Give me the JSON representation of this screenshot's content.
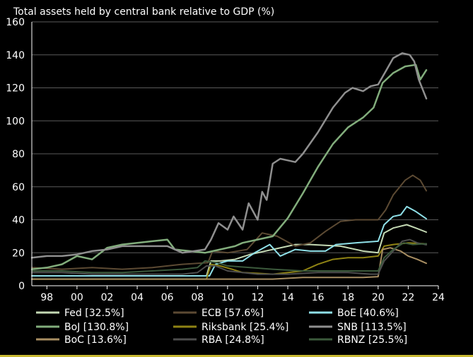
{
  "chart_data": {
    "type": "line",
    "title": "Total assets held by central bank relative to GDP (%)",
    "xlabel": "",
    "ylabel": "",
    "xlim": [
      1997,
      2024
    ],
    "ylim": [
      0,
      160
    ],
    "grid": true,
    "y_ticks": [
      0,
      20,
      40,
      60,
      80,
      100,
      120,
      140,
      160
    ],
    "x_ticks": [
      {
        "year": 1998,
        "label": "98"
      },
      {
        "year": 2000,
        "label": "00"
      },
      {
        "year": 2002,
        "label": "02"
      },
      {
        "year": 2004,
        "label": "04"
      },
      {
        "year": 2006,
        "label": "06"
      },
      {
        "year": 2008,
        "label": "08"
      },
      {
        "year": 2010,
        "label": "10"
      },
      {
        "year": 2012,
        "label": "12"
      },
      {
        "year": 2014,
        "label": "14"
      },
      {
        "year": 2016,
        "label": "16"
      },
      {
        "year": 2018,
        "label": "18"
      },
      {
        "year": 2020,
        "label": "20"
      },
      {
        "year": 2022,
        "label": "22"
      },
      {
        "year": 2024,
        "label": "24"
      }
    ],
    "legend_position": "bottom",
    "series": [
      {
        "name": "Fed [32.5%]",
        "color": "#c4d9b4",
        "width": 2,
        "points": [
          [
            1997,
            6
          ],
          [
            1999,
            6
          ],
          [
            2001,
            6
          ],
          [
            2003,
            6
          ],
          [
            2005,
            6
          ],
          [
            2007,
            6
          ],
          [
            2008.6,
            6
          ],
          [
            2008.9,
            15
          ],
          [
            2009.5,
            15
          ],
          [
            2010.5,
            16
          ],
          [
            2011.5,
            19
          ],
          [
            2013,
            22
          ],
          [
            2014.5,
            25
          ],
          [
            2015.5,
            25
          ],
          [
            2017.5,
            24
          ],
          [
            2019,
            21
          ],
          [
            2020,
            20
          ],
          [
            2020.4,
            32
          ],
          [
            2021,
            35
          ],
          [
            2021.9,
            37
          ],
          [
            2022.5,
            35
          ],
          [
            2023.2,
            32.5
          ]
        ]
      },
      {
        "name": "ECB [57.6%]",
        "color": "#5c4a33",
        "width": 2,
        "points": [
          [
            1997,
            11
          ],
          [
            1999,
            10
          ],
          [
            2001,
            11
          ],
          [
            2003,
            10
          ],
          [
            2005,
            11
          ],
          [
            2007,
            13
          ],
          [
            2008.7,
            14
          ],
          [
            2009,
            21
          ],
          [
            2010,
            20
          ],
          [
            2011.3,
            22
          ],
          [
            2012.3,
            32
          ],
          [
            2013.3,
            30
          ],
          [
            2014.5,
            24
          ],
          [
            2015.5,
            26
          ],
          [
            2016.5,
            33
          ],
          [
            2017.5,
            39
          ],
          [
            2018.5,
            40
          ],
          [
            2020,
            40
          ],
          [
            2020.5,
            46
          ],
          [
            2021,
            55
          ],
          [
            2021.8,
            64
          ],
          [
            2022.3,
            67
          ],
          [
            2022.8,
            64
          ],
          [
            2023.2,
            57.6
          ]
        ]
      },
      {
        "name": "BoE [40.6%]",
        "color": "#8fe0e8",
        "width": 2,
        "points": [
          [
            1997,
            6
          ],
          [
            1999,
            6
          ],
          [
            2001,
            6
          ],
          [
            2003,
            6
          ],
          [
            2005,
            6
          ],
          [
            2007,
            6
          ],
          [
            2008.8,
            6
          ],
          [
            2009.2,
            13
          ],
          [
            2010,
            15
          ],
          [
            2011,
            15
          ],
          [
            2011.8,
            20
          ],
          [
            2012.8,
            25
          ],
          [
            2013.5,
            18
          ],
          [
            2014.5,
            22
          ],
          [
            2015.5,
            21
          ],
          [
            2016.5,
            21
          ],
          [
            2017.2,
            25
          ],
          [
            2018.5,
            26
          ],
          [
            2020,
            27
          ],
          [
            2020.4,
            37
          ],
          [
            2021,
            42
          ],
          [
            2021.5,
            43
          ],
          [
            2021.9,
            48
          ],
          [
            2022.5,
            45
          ],
          [
            2023.2,
            40.6
          ]
        ]
      },
      {
        "name": "BoJ [130.8%]",
        "color": "#82ad7c",
        "width": 2.5,
        "points": [
          [
            1997,
            10
          ],
          [
            1998,
            11
          ],
          [
            1999,
            13
          ],
          [
            2000,
            18
          ],
          [
            2001,
            16
          ],
          [
            2002,
            23
          ],
          [
            2003,
            25
          ],
          [
            2004,
            26
          ],
          [
            2005,
            27
          ],
          [
            2006,
            28
          ],
          [
            2006.5,
            22
          ],
          [
            2007.5,
            21
          ],
          [
            2008.5,
            20
          ],
          [
            2009.5,
            22
          ],
          [
            2010.5,
            24
          ],
          [
            2011,
            26
          ],
          [
            2012,
            28
          ],
          [
            2013,
            30
          ],
          [
            2014,
            41
          ],
          [
            2015,
            56
          ],
          [
            2016,
            72
          ],
          [
            2017,
            86
          ],
          [
            2018,
            96
          ],
          [
            2019,
            102
          ],
          [
            2019.7,
            108
          ],
          [
            2020.3,
            123
          ],
          [
            2021,
            129
          ],
          [
            2021.8,
            133
          ],
          [
            2022.5,
            134
          ],
          [
            2022.8,
            125
          ],
          [
            2023.2,
            130.8
          ]
        ]
      },
      {
        "name": "Riksbank [25.4%]",
        "color": "#8f8314",
        "width": 2,
        "points": [
          [
            1997,
            4
          ],
          [
            1999,
            4
          ],
          [
            2001,
            4
          ],
          [
            2003,
            4
          ],
          [
            2005,
            4
          ],
          [
            2007,
            4
          ],
          [
            2008.6,
            4
          ],
          [
            2008.9,
            13
          ],
          [
            2009.5,
            12
          ],
          [
            2010.3,
            10
          ],
          [
            2011,
            8
          ],
          [
            2013,
            7
          ],
          [
            2015,
            9
          ],
          [
            2016,
            13
          ],
          [
            2017,
            16
          ],
          [
            2018,
            17
          ],
          [
            2019,
            17
          ],
          [
            2020,
            18
          ],
          [
            2020.4,
            24
          ],
          [
            2021,
            25
          ],
          [
            2022,
            26
          ],
          [
            2023.2,
            25.4
          ]
        ]
      },
      {
        "name": "SNB [113.5%]",
        "color": "#8f8f8f",
        "width": 2.5,
        "points": [
          [
            1997,
            17
          ],
          [
            1998,
            18
          ],
          [
            1999,
            18
          ],
          [
            2000,
            19
          ],
          [
            2001,
            21
          ],
          [
            2002,
            22
          ],
          [
            2003,
            24
          ],
          [
            2004,
            24
          ],
          [
            2005,
            24
          ],
          [
            2006,
            24
          ],
          [
            2007,
            20
          ],
          [
            2008.5,
            22
          ],
          [
            2008.9,
            28
          ],
          [
            2009.4,
            38
          ],
          [
            2010,
            34
          ],
          [
            2010.4,
            42
          ],
          [
            2011,
            34
          ],
          [
            2011.4,
            50
          ],
          [
            2012,
            40
          ],
          [
            2012.3,
            57
          ],
          [
            2012.6,
            52
          ],
          [
            2013,
            74
          ],
          [
            2013.5,
            77
          ],
          [
            2014,
            76
          ],
          [
            2014.5,
            75
          ],
          [
            2015,
            80
          ],
          [
            2016,
            93
          ],
          [
            2017,
            108
          ],
          [
            2017.8,
            117
          ],
          [
            2018.3,
            120
          ],
          [
            2019,
            118
          ],
          [
            2019.5,
            121
          ],
          [
            2020,
            122
          ],
          [
            2020.5,
            130
          ],
          [
            2021,
            138
          ],
          [
            2021.6,
            141
          ],
          [
            2022.1,
            140
          ],
          [
            2022.4,
            136
          ],
          [
            2022.7,
            125
          ],
          [
            2023.2,
            113.5
          ]
        ]
      },
      {
        "name": "BoC [13.6%]",
        "color": "#a88e62",
        "width": 2,
        "points": [
          [
            1997,
            4
          ],
          [
            1999,
            4
          ],
          [
            2001,
            4
          ],
          [
            2003,
            4
          ],
          [
            2005,
            4
          ],
          [
            2007,
            4
          ],
          [
            2009,
            4
          ],
          [
            2011,
            4
          ],
          [
            2013,
            4
          ],
          [
            2015,
            5
          ],
          [
            2017,
            5
          ],
          [
            2019,
            5
          ],
          [
            2020,
            5.5
          ],
          [
            2020.3,
            22
          ],
          [
            2020.8,
            23
          ],
          [
            2021.5,
            21
          ],
          [
            2022,
            18
          ],
          [
            2022.6,
            16
          ],
          [
            2023.2,
            13.6
          ]
        ]
      },
      {
        "name": "RBA [24.8%]",
        "color": "#4d4d4d",
        "width": 2,
        "points": [
          [
            1997,
            8
          ],
          [
            1999,
            8
          ],
          [
            2001,
            7
          ],
          [
            2003,
            7
          ],
          [
            2005,
            7
          ],
          [
            2007,
            7
          ],
          [
            2008,
            8
          ],
          [
            2008.6,
            12
          ],
          [
            2009.2,
            12
          ],
          [
            2010,
            9
          ],
          [
            2012,
            7
          ],
          [
            2014,
            7
          ],
          [
            2016,
            8
          ],
          [
            2018,
            8
          ],
          [
            2019.5,
            7
          ],
          [
            2020,
            7
          ],
          [
            2020.4,
            15
          ],
          [
            2021,
            21
          ],
          [
            2021.6,
            27
          ],
          [
            2022.1,
            28
          ],
          [
            2022.6,
            26
          ],
          [
            2023.2,
            24.8
          ]
        ]
      },
      {
        "name": "RBNZ [25.5%]",
        "color": "#3c5a3c",
        "width": 2,
        "points": [
          [
            1997,
            9
          ],
          [
            1999,
            9
          ],
          [
            2001,
            8
          ],
          [
            2003,
            8
          ],
          [
            2005,
            9
          ],
          [
            2007,
            10
          ],
          [
            2008,
            11
          ],
          [
            2008.5,
            15
          ],
          [
            2009.3,
            14
          ],
          [
            2010,
            12
          ],
          [
            2011.5,
            11
          ],
          [
            2013,
            10
          ],
          [
            2015,
            9
          ],
          [
            2017,
            9
          ],
          [
            2019,
            9
          ],
          [
            2020,
            9
          ],
          [
            2020.4,
            17
          ],
          [
            2021,
            22
          ],
          [
            2021.7,
            26
          ],
          [
            2022.3,
            25
          ],
          [
            2023.2,
            25.5
          ]
        ]
      }
    ]
  }
}
